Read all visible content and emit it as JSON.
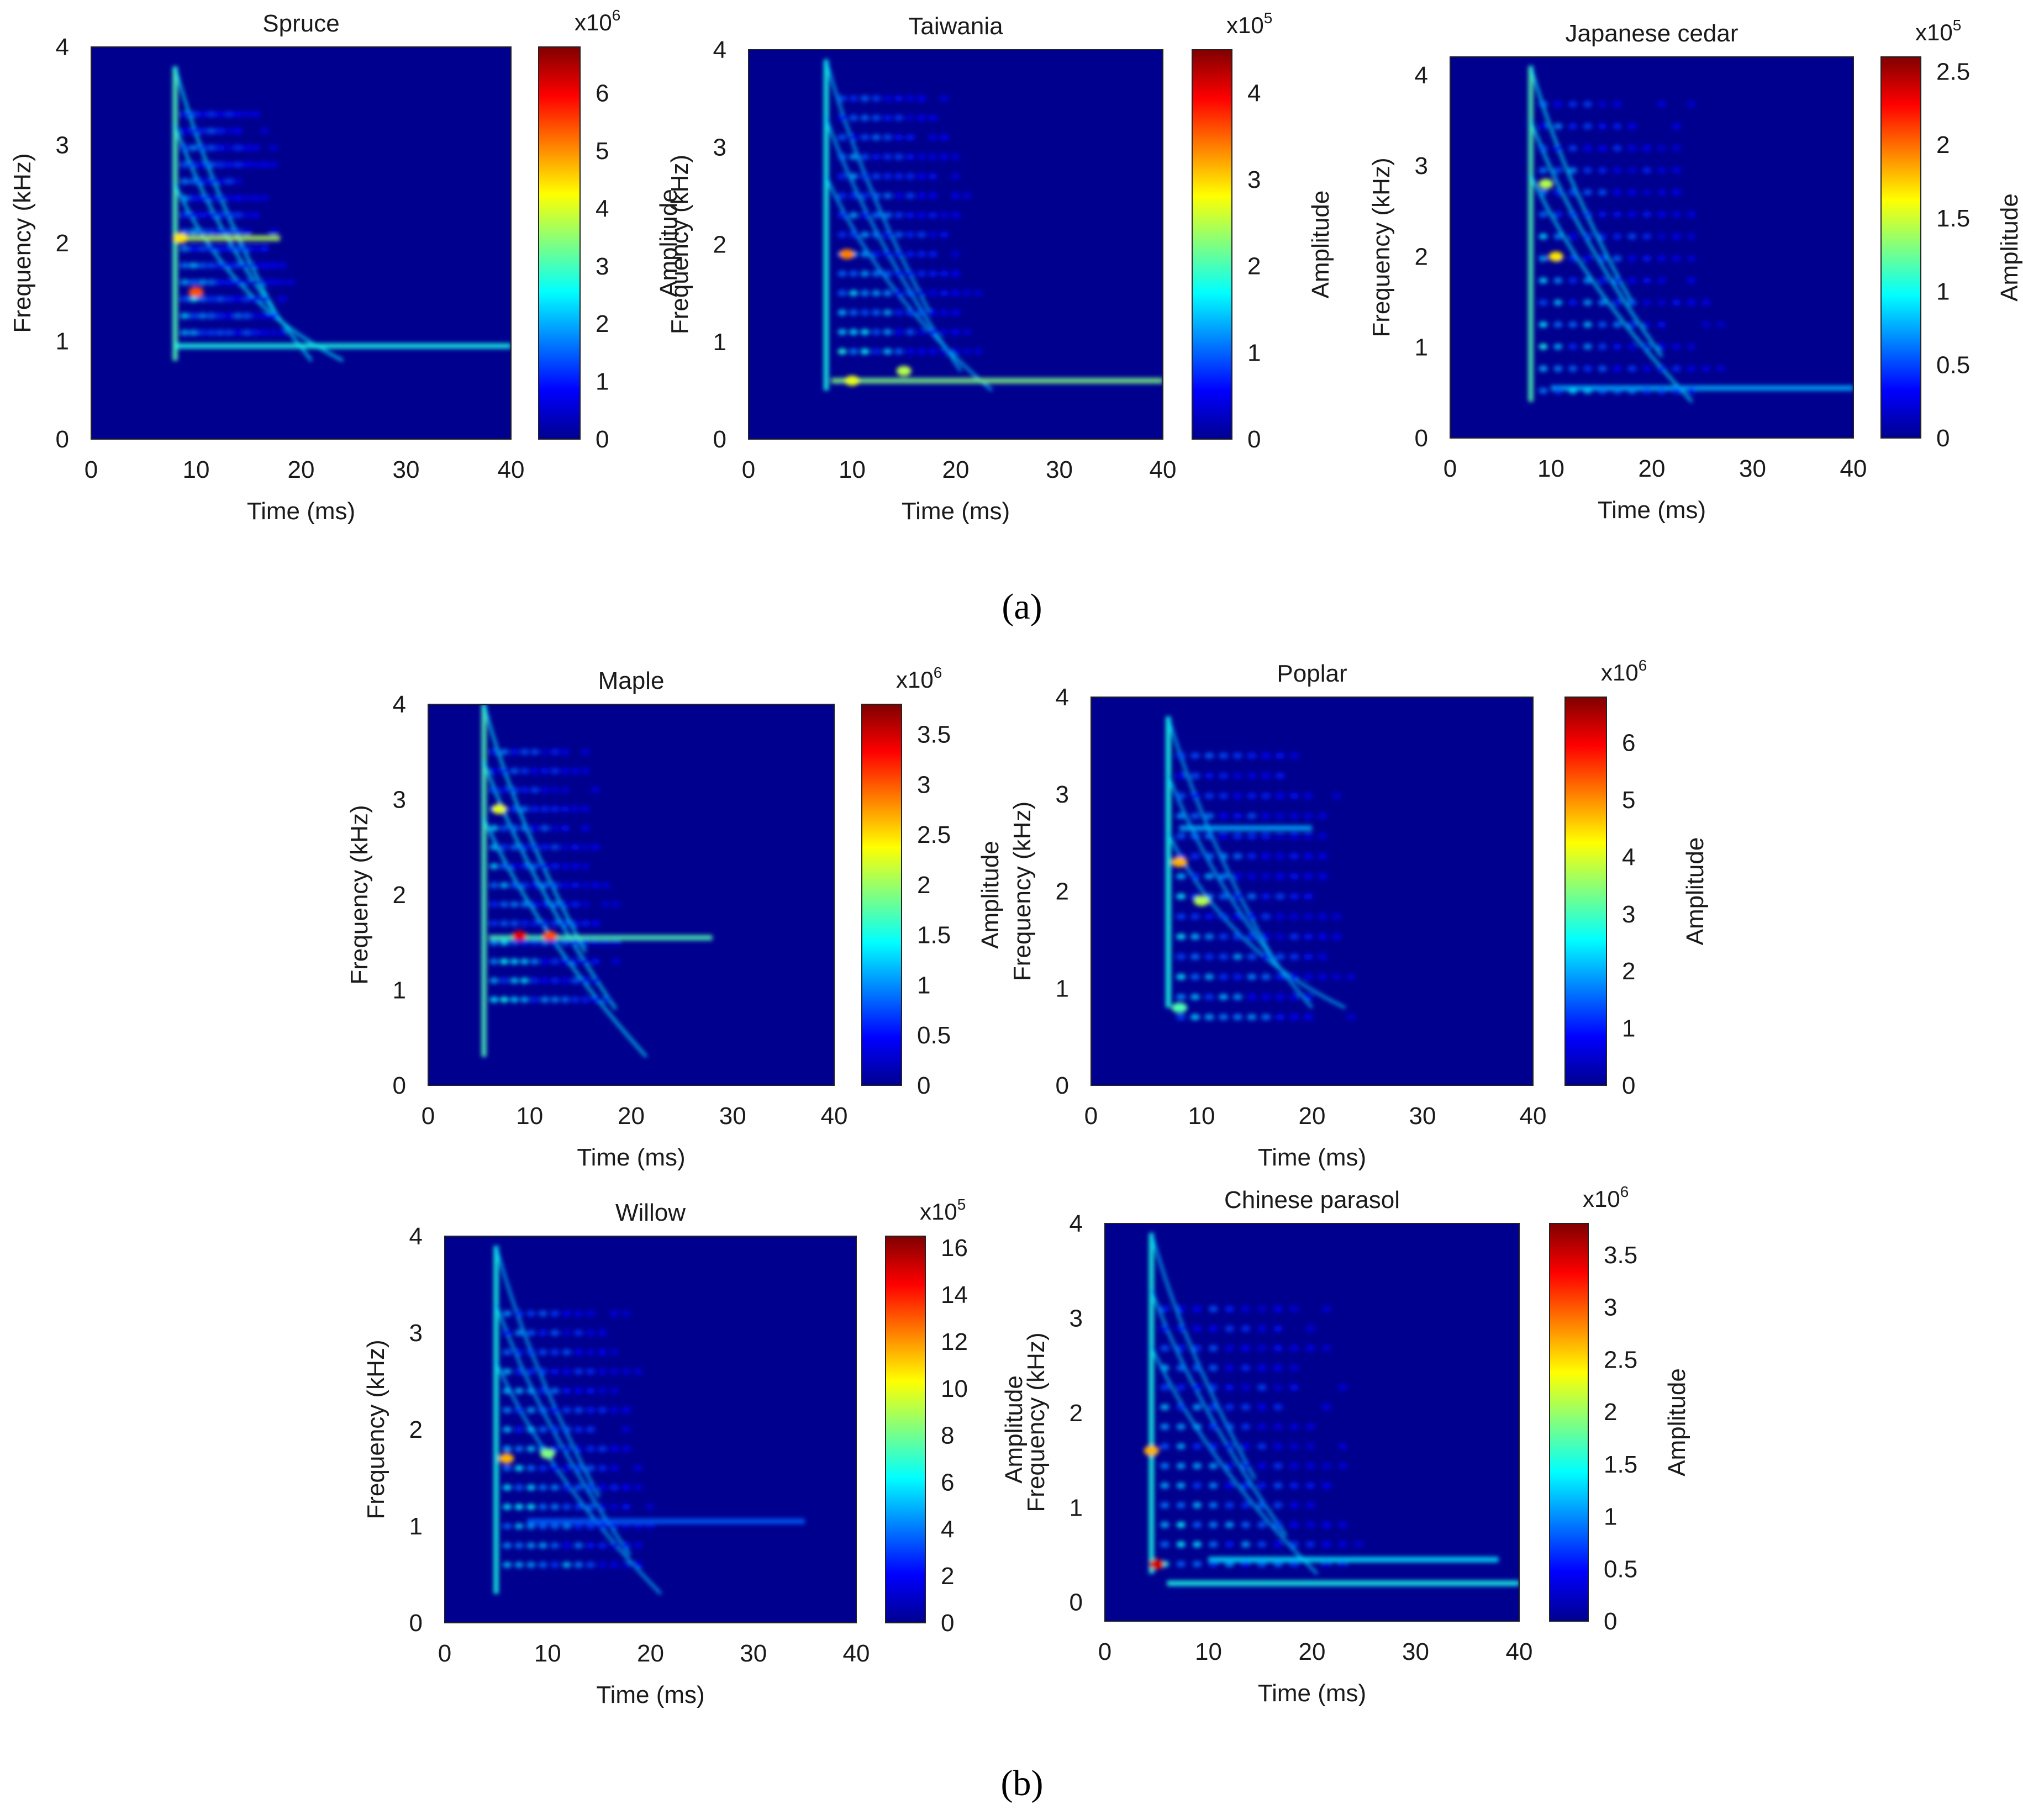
{
  "figure": {
    "label_a": "(a)",
    "label_b": "(b)"
  },
  "colormap": {
    "name": "jet",
    "stops": [
      "#00008f",
      "#0000ff",
      "#0080ff",
      "#00ffff",
      "#80ff80",
      "#ffff00",
      "#ff8000",
      "#ff0000",
      "#800000"
    ]
  },
  "chart_data": [
    {
      "id": "spruce",
      "type": "heatmap",
      "title": "Spruce",
      "xlabel": "Time (ms)",
      "ylabel": "Frequency (kHz)",
      "colorbar_label": "Amplitude",
      "colorbar_exponent": "x10",
      "colorbar_exponent_power": "6",
      "xlim": [
        0,
        40
      ],
      "ylim": [
        0,
        4
      ],
      "xticks": [
        "0",
        "10",
        "20",
        "30",
        "40"
      ],
      "yticks": [
        "0",
        "1",
        "2",
        "3",
        "4"
      ],
      "colorbar_max": 6.8,
      "colorbar_ticks": [
        "0",
        "1",
        "2",
        "3",
        "4",
        "5",
        "6"
      ],
      "background": "#00008f",
      "features": [
        {
          "kind": "onset",
          "time": 8,
          "freq_from": 0.8,
          "freq_to": 3.8,
          "amp": 0.45
        },
        {
          "kind": "band",
          "freq": 2.05,
          "t_from": 8,
          "t_to": 18,
          "amp": 0.55
        },
        {
          "kind": "band",
          "freq": 0.95,
          "t_from": 8,
          "t_to": 40,
          "amp": 0.4
        },
        {
          "kind": "speckle",
          "t_from": 8.5,
          "t_to": 22,
          "f_from": 1.0,
          "f_to": 3.4,
          "amp": 0.3
        },
        {
          "kind": "spot",
          "time": 10,
          "freq": 1.5,
          "amp": 0.8
        },
        {
          "kind": "spot",
          "time": 8.5,
          "freq": 2.05,
          "amp": 0.65
        }
      ]
    },
    {
      "id": "taiwania",
      "type": "heatmap",
      "title": "Taiwania",
      "xlabel": "Time (ms)",
      "ylabel": "Frequency (kHz)",
      "colorbar_label": "Amplitude",
      "colorbar_exponent": "x10",
      "colorbar_exponent_power": "5",
      "xlim": [
        0,
        40
      ],
      "ylim": [
        0,
        4
      ],
      "xticks": [
        "0",
        "10",
        "20",
        "30",
        "40"
      ],
      "yticks": [
        "0",
        "1",
        "2",
        "3",
        "4"
      ],
      "colorbar_max": 4.5,
      "colorbar_ticks": [
        "0",
        "1",
        "2",
        "3",
        "4"
      ],
      "background": "#00008f",
      "features": [
        {
          "kind": "onset",
          "time": 7.5,
          "freq_from": 0.5,
          "freq_to": 3.9,
          "amp": 0.4
        },
        {
          "kind": "band",
          "freq": 0.6,
          "t_from": 8,
          "t_to": 40,
          "amp": 0.5
        },
        {
          "kind": "speckle",
          "t_from": 8.5,
          "t_to": 26,
          "f_from": 0.8,
          "f_to": 3.6,
          "amp": 0.32
        },
        {
          "kind": "spot",
          "time": 9.5,
          "freq": 1.9,
          "amp": 0.75
        },
        {
          "kind": "spot",
          "time": 15,
          "freq": 0.7,
          "amp": 0.55
        },
        {
          "kind": "spot",
          "time": 10,
          "freq": 0.6,
          "amp": 0.6
        }
      ]
    },
    {
      "id": "japanese-cedar",
      "type": "heatmap",
      "title": "Japanese cedar",
      "xlabel": "Time (ms)",
      "ylabel": "Frequency (kHz)",
      "colorbar_label": "Amplitude",
      "colorbar_exponent": "x10",
      "colorbar_exponent_power": "5",
      "xlim": [
        0,
        40
      ],
      "ylim": [
        0,
        4.2
      ],
      "xticks": [
        "0",
        "10",
        "20",
        "30",
        "40"
      ],
      "yticks": [
        "0",
        "1",
        "2",
        "3",
        "4"
      ],
      "colorbar_max": 2.6,
      "colorbar_ticks": [
        "0",
        "0.5",
        "1",
        "1.5",
        "2",
        "2.5"
      ],
      "background": "#00008f",
      "features": [
        {
          "kind": "onset",
          "time": 8,
          "freq_from": 0.4,
          "freq_to": 4.1,
          "amp": 0.45
        },
        {
          "kind": "band",
          "freq": 0.55,
          "t_from": 10,
          "t_to": 40,
          "amp": 0.3
        },
        {
          "kind": "speckle",
          "t_from": 8.5,
          "t_to": 32,
          "f_from": 0.4,
          "f_to": 3.8,
          "amp": 0.32
        },
        {
          "kind": "spot",
          "time": 10.5,
          "freq": 2.0,
          "amp": 0.65
        },
        {
          "kind": "spot",
          "time": 9.5,
          "freq": 2.8,
          "amp": 0.55
        }
      ]
    },
    {
      "id": "maple",
      "type": "heatmap",
      "title": "Maple",
      "xlabel": "Time (ms)",
      "ylabel": "Frequency (kHz)",
      "colorbar_label": "Amplitude",
      "colorbar_exponent": "x10",
      "colorbar_exponent_power": "6",
      "xlim": [
        0,
        40
      ],
      "ylim": [
        0,
        4
      ],
      "xticks": [
        "0",
        "10",
        "20",
        "30",
        "40"
      ],
      "yticks": [
        "0",
        "1",
        "2",
        "3",
        "4"
      ],
      "colorbar_max": 3.8,
      "colorbar_ticks": [
        "0",
        "0.5",
        "1",
        "1.5",
        "2",
        "2.5",
        "3",
        "3.5"
      ],
      "background": "#00008f",
      "features": [
        {
          "kind": "onset",
          "time": 5.5,
          "freq_from": 0.3,
          "freq_to": 4.0,
          "amp": 0.45
        },
        {
          "kind": "band",
          "freq": 1.55,
          "t_from": 6,
          "t_to": 28,
          "amp": 0.45
        },
        {
          "kind": "speckle",
          "t_from": 6,
          "t_to": 22,
          "f_from": 0.8,
          "f_to": 3.6,
          "amp": 0.33
        },
        {
          "kind": "spot",
          "time": 9,
          "freq": 1.57,
          "amp": 0.9
        },
        {
          "kind": "spot",
          "time": 12,
          "freq": 1.57,
          "amp": 0.8
        },
        {
          "kind": "spot",
          "time": 7,
          "freq": 2.9,
          "amp": 0.6
        }
      ]
    },
    {
      "id": "poplar",
      "type": "heatmap",
      "title": "Poplar",
      "xlabel": "Time (ms)",
      "ylabel": "Frequency (kHz)",
      "colorbar_label": "Amplitude",
      "colorbar_exponent": "x10",
      "colorbar_exponent_power": "6",
      "xlim": [
        0,
        40
      ],
      "ylim": [
        0,
        4
      ],
      "xticks": [
        "0",
        "10",
        "20",
        "30",
        "40"
      ],
      "yticks": [
        "0",
        "1",
        "2",
        "3",
        "4"
      ],
      "colorbar_max": 6.8,
      "colorbar_ticks": [
        "0",
        "1",
        "2",
        "3",
        "4",
        "5",
        "6"
      ],
      "background": "#00008f",
      "features": [
        {
          "kind": "onset",
          "time": 7,
          "freq_from": 0.8,
          "freq_to": 3.8,
          "amp": 0.4
        },
        {
          "kind": "band",
          "freq": 2.65,
          "t_from": 8,
          "t_to": 20,
          "amp": 0.3
        },
        {
          "kind": "speckle",
          "t_from": 7.5,
          "t_to": 28,
          "f_from": 0.6,
          "f_to": 3.5,
          "amp": 0.32
        },
        {
          "kind": "spot",
          "time": 8,
          "freq": 2.3,
          "amp": 0.7
        },
        {
          "kind": "spot",
          "time": 10,
          "freq": 1.9,
          "amp": 0.55
        },
        {
          "kind": "spot",
          "time": 8,
          "freq": 0.8,
          "amp": 0.45
        }
      ]
    },
    {
      "id": "willow",
      "type": "heatmap",
      "title": "Willow",
      "xlabel": "Time (ms)",
      "ylabel": "Frequency (kHz)",
      "colorbar_label": "Amplitude",
      "colorbar_exponent": "x10",
      "colorbar_exponent_power": "5",
      "xlim": [
        0,
        40
      ],
      "ylim": [
        0,
        4
      ],
      "xticks": [
        "0",
        "10",
        "20",
        "30",
        "40"
      ],
      "yticks": [
        "0",
        "1",
        "2",
        "3",
        "4"
      ],
      "colorbar_max": 16.5,
      "colorbar_ticks": [
        "0",
        "2",
        "4",
        "6",
        "8",
        "10",
        "12",
        "14",
        "16"
      ],
      "background": "#00008f",
      "features": [
        {
          "kind": "onset",
          "time": 5,
          "freq_from": 0.3,
          "freq_to": 3.9,
          "amp": 0.4
        },
        {
          "kind": "band",
          "freq": 1.05,
          "t_from": 8,
          "t_to": 35,
          "amp": 0.22
        },
        {
          "kind": "speckle",
          "t_from": 5.5,
          "t_to": 24,
          "f_from": 0.5,
          "f_to": 3.3,
          "amp": 0.34
        },
        {
          "kind": "spot",
          "time": 6,
          "freq": 1.7,
          "amp": 0.7
        },
        {
          "kind": "spot",
          "time": 10,
          "freq": 1.75,
          "amp": 0.5
        }
      ]
    },
    {
      "id": "chinese-parasol",
      "type": "heatmap",
      "title": "Chinese parasol",
      "xlabel": "Time (ms)",
      "ylabel": "Frequency (kHz)",
      "colorbar_label": "Amplitude",
      "colorbar_exponent": "x10",
      "colorbar_exponent_power": "6",
      "xlim": [
        0,
        40
      ],
      "ylim": [
        -0.2,
        4
      ],
      "xticks": [
        "0",
        "10",
        "20",
        "30",
        "40"
      ],
      "yticks": [
        "0",
        "1",
        "2",
        "3",
        "4"
      ],
      "colorbar_max": 3.8,
      "colorbar_ticks": [
        "0",
        "0.5",
        "1",
        "1.5",
        "2",
        "2.5",
        "3",
        "3.5"
      ],
      "background": "#00008f",
      "features": [
        {
          "kind": "onset",
          "time": 4.5,
          "freq_from": 0.3,
          "freq_to": 3.9,
          "amp": 0.4
        },
        {
          "kind": "band",
          "freq": 0.2,
          "t_from": 6,
          "t_to": 40,
          "amp": 0.4
        },
        {
          "kind": "band",
          "freq": 0.45,
          "t_from": 10,
          "t_to": 38,
          "amp": 0.35
        },
        {
          "kind": "speckle",
          "t_from": 5,
          "t_to": 30,
          "f_from": 0.3,
          "f_to": 3.2,
          "amp": 0.32
        },
        {
          "kind": "spot",
          "time": 5,
          "freq": 0.4,
          "amp": 0.92
        },
        {
          "kind": "spot",
          "time": 4.5,
          "freq": 1.6,
          "amp": 0.7
        }
      ]
    }
  ]
}
